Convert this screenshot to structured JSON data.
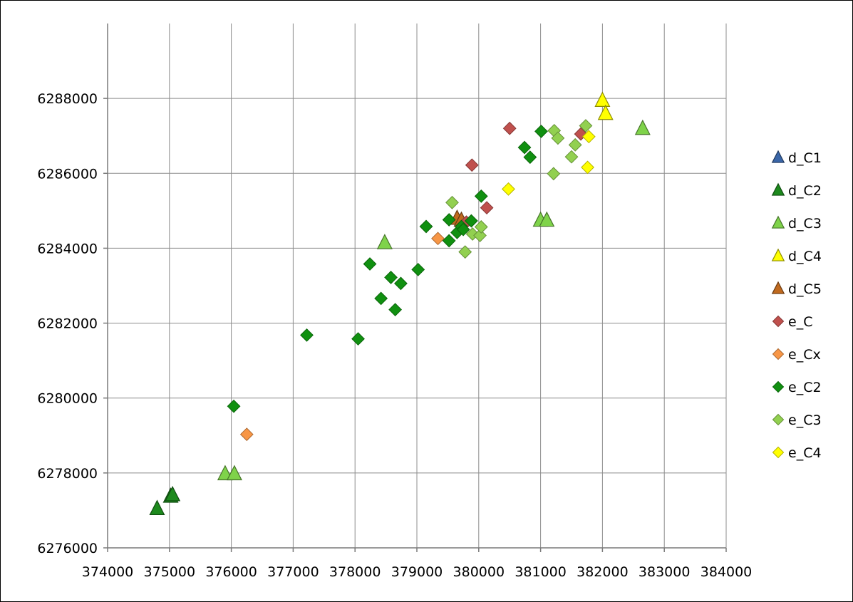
{
  "chart_data": {
    "type": "scatter",
    "title": "",
    "xlabel": "",
    "ylabel": "",
    "xlim": [
      374000,
      384000
    ],
    "ylim": [
      6276000,
      6290000
    ],
    "x_ticks": [
      374000,
      375000,
      376000,
      377000,
      378000,
      379000,
      380000,
      381000,
      382000,
      383000,
      384000
    ],
    "y_ticks": [
      6276000,
      6278000,
      6280000,
      6282000,
      6284000,
      6286000,
      6288000
    ],
    "grid": true,
    "legend_position": "right",
    "series": [
      {
        "name": "d_C1",
        "marker": "triangle",
        "color": "#3a66a8",
        "points": []
      },
      {
        "name": "d_C2",
        "marker": "triangle",
        "color": "#1d8a1d",
        "points": [
          [
            374800,
            6277050
          ],
          [
            375020,
            6277380
          ],
          [
            375050,
            6277420
          ]
        ]
      },
      {
        "name": "d_C3",
        "marker": "triangle",
        "color": "#7fd34a",
        "points": [
          [
            375900,
            6277980
          ],
          [
            376050,
            6277980
          ],
          [
            378480,
            6284150
          ],
          [
            381000,
            6284750
          ],
          [
            381100,
            6284750
          ],
          [
            382650,
            6287200
          ]
        ]
      },
      {
        "name": "d_C4",
        "marker": "triangle",
        "color": "#ffff00",
        "points": [
          [
            382000,
            6287950
          ],
          [
            382050,
            6287600
          ]
        ]
      },
      {
        "name": "d_C5",
        "marker": "triangle",
        "color": "#c06a1f",
        "points": [
          [
            379650,
            6284800
          ],
          [
            379720,
            6284750
          ]
        ]
      },
      {
        "name": "e_C",
        "marker": "diamond",
        "color": "#c0504d",
        "points": [
          [
            380500,
            6287200
          ],
          [
            379890,
            6286220
          ],
          [
            380130,
            6285080
          ],
          [
            381650,
            6287050
          ],
          [
            379800,
            6284700
          ]
        ]
      },
      {
        "name": "e_Cx",
        "marker": "diamond",
        "color": "#f79646",
        "points": [
          [
            376250,
            6279030
          ],
          [
            379340,
            6284260
          ]
        ]
      },
      {
        "name": "e_C2",
        "marker": "diamond",
        "color": "#109010",
        "points": [
          [
            376040,
            6279780
          ],
          [
            377220,
            6281680
          ],
          [
            378050,
            6281580
          ],
          [
            378240,
            6283580
          ],
          [
            378420,
            6282660
          ],
          [
            378580,
            6283220
          ],
          [
            378650,
            6282360
          ],
          [
            378740,
            6283060
          ],
          [
            379020,
            6283430
          ],
          [
            379150,
            6284580
          ],
          [
            379520,
            6284760
          ],
          [
            379520,
            6284200
          ],
          [
            379650,
            6284420
          ],
          [
            379720,
            6284580
          ],
          [
            379880,
            6284730
          ],
          [
            380040,
            6285390
          ],
          [
            380740,
            6286690
          ],
          [
            380830,
            6286430
          ],
          [
            381010,
            6287120
          ],
          [
            379750,
            6284500
          ]
        ]
      },
      {
        "name": "e_C3",
        "marker": "diamond",
        "color": "#92d050",
        "points": [
          [
            379570,
            6285220
          ],
          [
            379780,
            6283900
          ],
          [
            379900,
            6284380
          ],
          [
            380020,
            6284340
          ],
          [
            380040,
            6284570
          ],
          [
            381210,
            6285990
          ],
          [
            381220,
            6287140
          ],
          [
            381280,
            6286940
          ],
          [
            381500,
            6286440
          ],
          [
            381560,
            6286760
          ],
          [
            381730,
            6287270
          ]
        ]
      },
      {
        "name": "e_C4",
        "marker": "diamond",
        "color": "#ffff00",
        "points": [
          [
            380480,
            6285580
          ],
          [
            381760,
            6286160
          ],
          [
            381780,
            6286980
          ]
        ]
      }
    ]
  }
}
